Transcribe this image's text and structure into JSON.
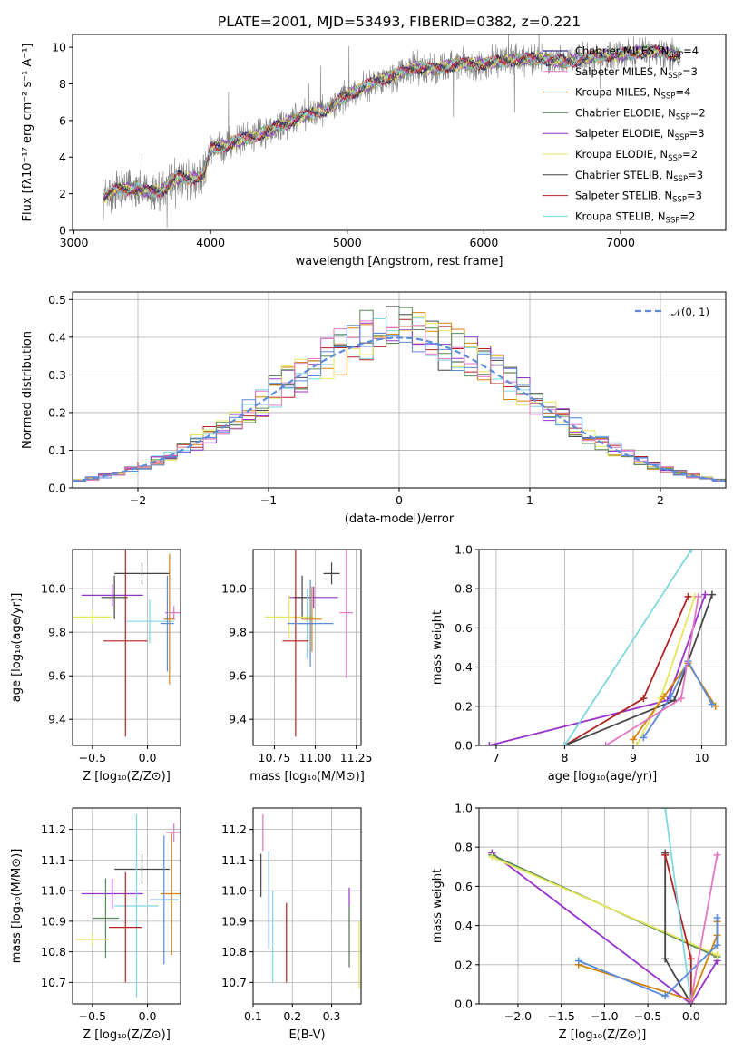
{
  "figure": {
    "title": "PLATE=2001, MJD=53493, FIBERID=0382, z=0.221"
  },
  "chart_data": [
    {
      "id": "spectrum",
      "type": "line",
      "xlabel": "wavelength [Angstrom, rest frame]",
      "ylabel": "Flux [fλ10⁻¹⁷ erg cm⁻² s⁻¹ A⁻¹]",
      "xlim": [
        2990,
        7770
      ],
      "ylim": [
        0,
        10.7
      ],
      "xticks": [
        "3000",
        "4000",
        "5000",
        "6000",
        "7000"
      ],
      "yticks": [
        "0",
        "2",
        "4",
        "6",
        "8",
        "10"
      ],
      "grid": false,
      "legend": "top-right",
      "data_range": [
        3215,
        7440
      ],
      "continuum": [
        [
          3215,
          1.8
        ],
        [
          3300,
          2.2
        ],
        [
          3450,
          2.3
        ],
        [
          3550,
          2.1
        ],
        [
          3650,
          2.2
        ],
        [
          3750,
          2.9
        ],
        [
          3850,
          2.8
        ],
        [
          3950,
          3.0
        ],
        [
          4000,
          4.4
        ],
        [
          4100,
          4.6
        ],
        [
          4200,
          4.9
        ],
        [
          4350,
          5.2
        ],
        [
          4500,
          5.7
        ],
        [
          4600,
          6.0
        ],
        [
          4700,
          6.3
        ],
        [
          4850,
          6.6
        ],
        [
          5000,
          7.4
        ],
        [
          5100,
          7.7
        ],
        [
          5200,
          8.1
        ],
        [
          5350,
          8.5
        ],
        [
          5500,
          8.9
        ],
        [
          5650,
          8.8
        ],
        [
          5800,
          9.1
        ],
        [
          6000,
          9.1
        ],
        [
          6200,
          9.3
        ],
        [
          6400,
          9.4
        ],
        [
          6600,
          9.2
        ],
        [
          6800,
          9.5
        ],
        [
          7000,
          9.6
        ],
        [
          7200,
          9.8
        ],
        [
          7440,
          9.6
        ]
      ],
      "series": [
        {
          "name": "Chabrier MILES, N_SSP=4",
          "color": "#000080"
        },
        {
          "name": "Salpeter MILES, N_SSP=3",
          "color": "#e377c2"
        },
        {
          "name": "Kroupa MILES, N_SSP=4",
          "color": "#d4820b"
        },
        {
          "name": "Chabrier ELODIE, N_SSP=2",
          "color": "#5a8a5a"
        },
        {
          "name": "Salpeter ELODIE, N_SSP=3",
          "color": "#9932cc"
        },
        {
          "name": "Kroupa ELODIE, N_SSP=2",
          "color": "#e6e65c"
        },
        {
          "name": "Chabrier STELIB, N_SSP=3",
          "color": "#444444"
        },
        {
          "name": "Salpeter STELIB, N_SSP=3",
          "color": "#b22222"
        },
        {
          "name": "Kroupa STELIB, N_SSP=2",
          "color": "#7fd8e0"
        }
      ],
      "data_color": "#808080"
    },
    {
      "id": "residuals",
      "type": "bar",
      "xlabel": "(data-model)/error",
      "ylabel": "Normed distribution",
      "xlim": [
        -2.5,
        2.5
      ],
      "ylim": [
        0,
        0.52
      ],
      "xticks": [
        "−2",
        "−1",
        "0",
        "1",
        "2"
      ],
      "yticks": [
        "0.0",
        "0.1",
        "0.2",
        "0.3",
        "0.4",
        "0.5"
      ],
      "grid": true,
      "legend": "top-right",
      "legend_label": "𝒩(0, 1)",
      "bin_width": 0.1,
      "bin_start": -2.5,
      "gaussian_color": "#5b8bd9",
      "hist_colors": [
        "#444444",
        "#b22222",
        "#7fd8e0",
        "#d4820b",
        "#9932cc",
        "#e6e65c",
        "#5a8a5a",
        "#e377c2",
        "#5b8bd9"
      ]
    },
    {
      "id": "age_vs_Z",
      "type": "scatter",
      "xlabel": "Z [log₁₀(Z/Z⊙)]",
      "ylabel": "age  [log₁₀(age/yr)]",
      "xlim": [
        -0.68,
        0.3
      ],
      "ylim": [
        9.28,
        10.18
      ],
      "xticks": [
        "−0.5",
        "0.0"
      ],
      "yticks": [
        "9.4",
        "9.6",
        "9.8",
        "10.0"
      ],
      "grid": true,
      "points": [
        {
          "x": -0.32,
          "y": 9.97,
          "xerr": 0.28,
          "yerr": 0.05,
          "color": "#9932cc"
        },
        {
          "x": -0.3,
          "y": 9.96,
          "xerr": 0.12,
          "yerr": 0.1,
          "color": "#444444"
        },
        {
          "x": -0.05,
          "y": 10.07,
          "xerr": 0.25,
          "yerr": 0.05,
          "color": "#444444"
        },
        {
          "x": -0.5,
          "y": 9.87,
          "xerr": 0.18,
          "yerr": 0.03,
          "color": "#e6e65c"
        },
        {
          "x": 0.02,
          "y": 9.85,
          "xerr": 0.22,
          "yerr": 0.1,
          "color": "#7fd8e0"
        },
        {
          "x": -0.2,
          "y": 9.76,
          "xerr": 0.2,
          "yerr": 0.44,
          "color": "#b22222"
        },
        {
          "x": 0.2,
          "y": 9.86,
          "xerr": 0.05,
          "yerr": 0.3,
          "color": "#d4820b"
        },
        {
          "x": 0.24,
          "y": 9.89,
          "xerr": 0.08,
          "yerr": 0.03,
          "color": "#e377c2"
        },
        {
          "x": 0.18,
          "y": 9.84,
          "xerr": 0.06,
          "yerr": 0.22,
          "color": "#5b8bd9"
        }
      ]
    },
    {
      "id": "age_vs_mass",
      "type": "scatter",
      "xlabel": "mass [log₁₀(M/M⊙)]",
      "ylabel": "",
      "xlim": [
        10.62,
        11.28
      ],
      "ylim": [
        9.28,
        10.18
      ],
      "xticks": [
        "10.75",
        "11.00",
        "11.25"
      ],
      "yticks": [
        "9.4",
        "9.6",
        "9.8",
        "10.0"
      ],
      "grid": true,
      "points": [
        {
          "x": 10.99,
          "y": 9.96,
          "xerr": 0.15,
          "yerr": 0.05,
          "color": "#9932cc"
        },
        {
          "x": 10.92,
          "y": 9.96,
          "xerr": 0.05,
          "yerr": 0.1,
          "color": "#444444"
        },
        {
          "x": 11.1,
          "y": 10.07,
          "xerr": 0.05,
          "yerr": 0.05,
          "color": "#444444"
        },
        {
          "x": 10.84,
          "y": 9.87,
          "xerr": 0.15,
          "yerr": 0.1,
          "color": "#e6e65c"
        },
        {
          "x": 10.95,
          "y": 9.84,
          "xerr": 0.07,
          "yerr": 0.16,
          "color": "#7fd8e0"
        },
        {
          "x": 10.88,
          "y": 9.76,
          "xerr": 0.08,
          "yerr": 0.44,
          "color": "#b22222"
        },
        {
          "x": 10.98,
          "y": 9.86,
          "xerr": 0.06,
          "yerr": 0.15,
          "color": "#d4820b"
        },
        {
          "x": 11.19,
          "y": 9.89,
          "xerr": 0.04,
          "yerr": 0.3,
          "color": "#e377c2"
        },
        {
          "x": 10.97,
          "y": 9.84,
          "xerr": 0.14,
          "yerr": 0.2,
          "color": "#5b8bd9"
        }
      ]
    },
    {
      "id": "weight_vs_age",
      "type": "line",
      "xlabel": "age  [log₁₀(age/yr)]",
      "ylabel": "mass weight",
      "xlim": [
        6.75,
        10.35
      ],
      "ylim": [
        0,
        1
      ],
      "xticks": [
        "7",
        "8",
        "9",
        "10"
      ],
      "yticks": [
        "0.0",
        "0.2",
        "0.4",
        "0.6",
        "0.8",
        "1.0"
      ],
      "grid": true,
      "series": [
        {
          "color": "#9932cc",
          "points": [
            [
              6.9,
              0.0
            ],
            [
              9.5,
              0.23
            ],
            [
              10.05,
              0.77
            ]
          ]
        },
        {
          "color": "#b22222",
          "points": [
            [
              8.0,
              0.0
            ],
            [
              9.15,
              0.24
            ],
            [
              9.8,
              0.76
            ]
          ]
        },
        {
          "color": "#444444",
          "points": [
            [
              8.0,
              0.0
            ],
            [
              9.6,
              0.23
            ],
            [
              10.15,
              0.77
            ]
          ]
        },
        {
          "color": "#7fd8e0",
          "points": [
            [
              8.0,
              0.0
            ],
            [
              9.85,
              1.0
            ]
          ]
        },
        {
          "color": "#e6e65c",
          "points": [
            [
              9.05,
              0.0
            ],
            [
              9.4,
              0.24
            ],
            [
              9.9,
              0.76
            ]
          ]
        },
        {
          "color": "#d4820b",
          "points": [
            [
              9.0,
              0.03
            ],
            [
              9.45,
              0.25
            ],
            [
              9.8,
              0.42
            ],
            [
              10.2,
              0.2
            ]
          ]
        },
        {
          "color": "#5b8bd9",
          "points": [
            [
              9.15,
              0.04
            ],
            [
              9.55,
              0.25
            ],
            [
              9.8,
              0.43
            ],
            [
              10.15,
              0.21
            ]
          ]
        },
        {
          "color": "#e377c2",
          "points": [
            [
              8.6,
              0.0
            ],
            [
              9.7,
              0.24
            ],
            [
              9.95,
              0.76
            ]
          ]
        }
      ]
    },
    {
      "id": "mass_vs_Z",
      "type": "scatter",
      "xlabel": "Z [log₁₀(Z/Z⊙)]",
      "ylabel": "mass [log₁₀(M/M⊙)]",
      "xlim": [
        -0.68,
        0.3
      ],
      "ylim": [
        10.63,
        11.27
      ],
      "xticks": [
        "−0.5",
        "0.0"
      ],
      "yticks": [
        "10.7",
        "10.8",
        "10.9",
        "11.0",
        "11.1",
        "11.2"
      ],
      "grid": true,
      "points": [
        {
          "x": -0.32,
          "y": 10.99,
          "xerr": 0.28,
          "yerr": 0.05,
          "color": "#9932cc"
        },
        {
          "x": -0.38,
          "y": 10.91,
          "xerr": 0.12,
          "yerr": 0.13,
          "color": "#5a8a5a"
        },
        {
          "x": -0.05,
          "y": 11.07,
          "xerr": 0.25,
          "yerr": 0.05,
          "color": "#444444"
        },
        {
          "x": -0.5,
          "y": 10.84,
          "xerr": 0.15,
          "yerr": 0.02,
          "color": "#e6e65c"
        },
        {
          "x": -0.1,
          "y": 10.95,
          "xerr": 0.2,
          "yerr": 0.3,
          "color": "#7fd8e0"
        },
        {
          "x": -0.2,
          "y": 10.88,
          "xerr": 0.15,
          "yerr": 0.18,
          "color": "#b22222"
        },
        {
          "x": 0.22,
          "y": 10.99,
          "xerr": 0.1,
          "yerr": 0.2,
          "color": "#d4820b"
        },
        {
          "x": 0.24,
          "y": 11.19,
          "xerr": 0.07,
          "yerr": 0.03,
          "color": "#e377c2"
        },
        {
          "x": 0.15,
          "y": 10.97,
          "xerr": 0.13,
          "yerr": 0.21,
          "color": "#5b8bd9"
        }
      ]
    },
    {
      "id": "mass_vs_ebv",
      "type": "scatter",
      "xlabel": "E(B-V)",
      "ylabel": "",
      "xlim": [
        0.1,
        0.375
      ],
      "ylim": [
        10.63,
        11.27
      ],
      "xticks": [
        "0.1",
        "0.2",
        "0.3"
      ],
      "yticks": [
        "10.7",
        "10.8",
        "10.9",
        "11.0",
        "11.1",
        "11.2"
      ],
      "grid": true,
      "points": [
        {
          "x": 0.125,
          "y": 11.19,
          "xerr": 0,
          "yerr": 0.06,
          "color": "#e377c2"
        },
        {
          "x": 0.12,
          "y": 11.05,
          "xerr": 0,
          "yerr": 0.07,
          "color": "#444444"
        },
        {
          "x": 0.14,
          "y": 10.97,
          "xerr": 0,
          "yerr": 0.16,
          "color": "#5b8bd9"
        },
        {
          "x": 0.15,
          "y": 10.85,
          "xerr": 0,
          "yerr": 0.15,
          "color": "#7fd8e0"
        },
        {
          "x": 0.185,
          "y": 10.83,
          "xerr": 0,
          "yerr": 0.13,
          "color": "#b22222"
        },
        {
          "x": 0.345,
          "y": 10.88,
          "xerr": 0,
          "yerr": 0.13,
          "color": "#9932cc"
        },
        {
          "x": 0.345,
          "y": 10.85,
          "xerr": 0,
          "yerr": 0.1,
          "color": "#5a8a5a"
        },
        {
          "x": 0.37,
          "y": 10.79,
          "xerr": 0,
          "yerr": 0.11,
          "color": "#e6e65c"
        }
      ]
    },
    {
      "id": "weight_vs_Z",
      "type": "line",
      "xlabel": "Z [log₁₀(Z/Z⊙)]",
      "ylabel": "mass weight",
      "xlim": [
        -2.45,
        0.4
      ],
      "ylim": [
        0,
        1
      ],
      "xticks": [
        "−2.0",
        "−1.5",
        "−1.0",
        "−0.5",
        "0.0"
      ],
      "yticks": [
        "0.0",
        "0.2",
        "0.4",
        "0.6",
        "0.8",
        "1.0"
      ],
      "grid": true,
      "series": [
        {
          "color": "#9932cc",
          "points": [
            [
              -2.3,
              0.77
            ],
            [
              0.0,
              0.0
            ],
            [
              0.3,
              0.22
            ]
          ]
        },
        {
          "color": "#5a8a5a",
          "points": [
            [
              -2.3,
              0.76
            ],
            [
              0.3,
              0.24
            ]
          ]
        },
        {
          "color": "#e6e65c",
          "points": [
            [
              -2.3,
              0.75
            ],
            [
              0.3,
              0.25
            ]
          ]
        },
        {
          "color": "#444444",
          "points": [
            [
              -0.3,
              0.77
            ],
            [
              -0.3,
              0.23
            ],
            [
              0.0,
              0.0
            ]
          ]
        },
        {
          "color": "#b22222",
          "points": [
            [
              -0.3,
              0.76
            ],
            [
              0.0,
              0.23
            ],
            [
              0.0,
              0.0
            ]
          ]
        },
        {
          "color": "#7fd8e0",
          "points": [
            [
              -0.3,
              1.0
            ],
            [
              0.0,
              0.0
            ]
          ]
        },
        {
          "color": "#d4820b",
          "points": [
            [
              -1.3,
              0.2
            ],
            [
              0.0,
              0.02
            ],
            [
              0.3,
              0.35
            ],
            [
              0.3,
              0.42
            ]
          ]
        },
        {
          "color": "#5b8bd9",
          "points": [
            [
              -1.3,
              0.22
            ],
            [
              -0.3,
              0.04
            ],
            [
              0.3,
              0.3
            ],
            [
              0.3,
              0.44
            ]
          ]
        },
        {
          "color": "#e377c2",
          "points": [
            [
              0.0,
              0.02
            ],
            [
              0.3,
              0.76
            ]
          ]
        }
      ]
    }
  ]
}
